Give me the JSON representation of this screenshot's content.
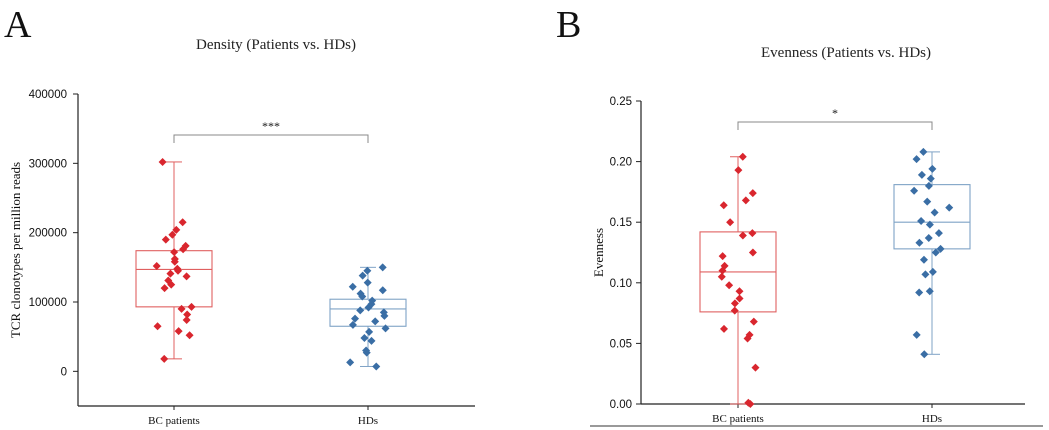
{
  "panels": [
    {
      "letter": "A"
    },
    {
      "letter": "B"
    }
  ],
  "chart_data": [
    {
      "type": "box",
      "title": "Density (Patients vs. HDs)",
      "ylabel": "TCR clonotypes per million reads",
      "xlabel": "",
      "ylim": [
        -50000,
        400000
      ],
      "yticks": [
        0,
        100000,
        200000,
        300000,
        400000
      ],
      "yticklabels": [
        "0",
        "100000",
        "200000",
        "300000",
        "400000"
      ],
      "categories": [
        "BC patients",
        "HDs"
      ],
      "colors": [
        "#d9262e",
        "#3a6ea5"
      ],
      "box_colors": [
        "#e06060",
        "#7fa3c6"
      ],
      "significance": "***",
      "boxes": [
        {
          "category": "BC patients",
          "q1": 93000,
          "median": 147000,
          "q3": 174000,
          "whisker_low": 18000,
          "whisker_high": 302000
        },
        {
          "category": "HDs",
          "q1": 65000,
          "median": 90000,
          "q3": 104000,
          "whisker_low": 7000,
          "whisker_high": 150000
        }
      ],
      "points": [
        [
          302000,
          215000,
          204000,
          197000,
          190000,
          181000,
          176000,
          172000,
          162000,
          158000,
          152000,
          148000,
          145000,
          141000,
          137000,
          131000,
          125000,
          120000,
          93000,
          90000,
          82000,
          74000,
          65000,
          58000,
          52000,
          18000
        ],
        [
          150000,
          145000,
          138000,
          128000,
          122000,
          117000,
          112000,
          108000,
          102000,
          97000,
          92000,
          88000,
          85000,
          80000,
          76000,
          72000,
          67000,
          62000,
          57000,
          48000,
          44000,
          30000,
          27000,
          13000,
          7000
        ]
      ]
    },
    {
      "type": "box",
      "title": "Evenness (Patients vs. HDs)",
      "ylabel": "Evenness",
      "xlabel": "",
      "ylim": [
        0.0,
        0.25
      ],
      "yticks": [
        0.0,
        0.05,
        0.1,
        0.15,
        0.2,
        0.25
      ],
      "yticklabels": [
        "0.00",
        "0.05",
        "0.10",
        "0.15",
        "0.20",
        "0.25"
      ],
      "categories": [
        "BC patients",
        "HDs"
      ],
      "colors": [
        "#d9262e",
        "#3a6ea5"
      ],
      "box_colors": [
        "#e06060",
        "#7fa3c6"
      ],
      "significance": "*",
      "boxes": [
        {
          "category": "BC patients",
          "q1": 0.076,
          "median": 0.109,
          "q3": 0.142,
          "whisker_low": 0.0,
          "whisker_high": 0.204
        },
        {
          "category": "HDs",
          "q1": 0.128,
          "median": 0.15,
          "q3": 0.181,
          "whisker_low": 0.041,
          "whisker_high": 0.208
        }
      ],
      "points": [
        [
          0.204,
          0.193,
          0.174,
          0.168,
          0.164,
          0.15,
          0.141,
          0.139,
          0.125,
          0.122,
          0.114,
          0.11,
          0.105,
          0.098,
          0.093,
          0.087,
          0.083,
          0.077,
          0.068,
          0.062,
          0.057,
          0.054,
          0.03,
          0.001,
          0.0
        ],
        [
          0.208,
          0.202,
          0.194,
          0.189,
          0.186,
          0.18,
          0.176,
          0.167,
          0.162,
          0.158,
          0.151,
          0.148,
          0.141,
          0.137,
          0.133,
          0.128,
          0.125,
          0.119,
          0.109,
          0.107,
          0.093,
          0.092,
          0.057,
          0.041
        ]
      ]
    }
  ]
}
